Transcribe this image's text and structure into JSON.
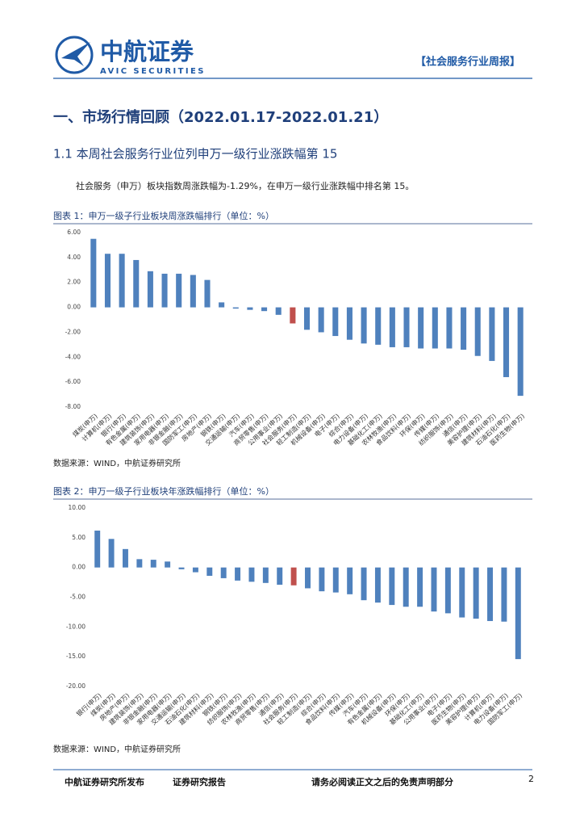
{
  "header": {
    "brand": "中航证券",
    "brand_en": "AVIC SECURITIES",
    "report_tag": "【社会服务行业周报】"
  },
  "section": {
    "heading": "一、市场行情回顾（2022.01.17-2022.01.21）",
    "subheading": "1.1 本周社会服务行业位列申万一级行业涨跌幅第 15",
    "paragraph": "社会服务（申万）板块指数周涨跌幅为-1.29%，在申万一级行业涨跌幅中排名第 15。"
  },
  "chart_data": [
    {
      "type": "bar",
      "title": "图表 1：申万一级子行业板块周涨跌幅排行（单位：%）",
      "source": "数据来源：WIND，中航证券研究所",
      "categories": [
        "煤炭(申万)",
        "计算机(申万)",
        "银行(申万)",
        "有色金属(申万)",
        "建筑装饰(申万)",
        "家用电器(申万)",
        "非银金融(申万)",
        "国防军工(申万)",
        "房地产(申万)",
        "钢铁(申万)",
        "交通运输(申万)",
        "汽车(申万)",
        "商贸零售(申万)",
        "公用事业(申万)",
        "社会服务(申万)",
        "轻工制造(申万)",
        "机械设备(申万)",
        "电子(申万)",
        "综合(申万)",
        "电力设备(申万)",
        "基础化工(申万)",
        "农林牧渔(申万)",
        "食品饮料(申万)",
        "环保(申万)",
        "传媒(申万)",
        "纺织服饰(申万)",
        "通信(申万)",
        "美容护理(申万)",
        "建筑材料(申万)",
        "石油石化(申万)",
        "医药生物(申万)"
      ],
      "values": [
        5.5,
        4.3,
        4.3,
        3.8,
        2.9,
        2.7,
        2.7,
        2.6,
        2.2,
        0.4,
        -0.1,
        -0.2,
        -0.3,
        -0.6,
        -1.29,
        -1.8,
        -2.0,
        -2.3,
        -2.6,
        -2.9,
        -3.0,
        -3.2,
        -3.2,
        -3.3,
        -3.3,
        -3.3,
        -3.4,
        -3.9,
        -4.3,
        -5.6,
        -7.1
      ],
      "colors": [
        "#4f81bd",
        "#4f81bd",
        "#4f81bd",
        "#4f81bd",
        "#4f81bd",
        "#4f81bd",
        "#4f81bd",
        "#4f81bd",
        "#4f81bd",
        "#4f81bd",
        "#4f81bd",
        "#4f81bd",
        "#4f81bd",
        "#4f81bd",
        "#c0504d",
        "#4f81bd",
        "#4f81bd",
        "#4f81bd",
        "#4f81bd",
        "#4f81bd",
        "#4f81bd",
        "#4f81bd",
        "#4f81bd",
        "#4f81bd",
        "#4f81bd",
        "#4f81bd",
        "#4f81bd",
        "#4f81bd",
        "#4f81bd",
        "#4f81bd",
        "#4f81bd"
      ],
      "ylim": [
        -8,
        6
      ],
      "yticks": [
        {
          "value": 6,
          "label": "6.00"
        },
        {
          "value": 4,
          "label": "4.00"
        },
        {
          "value": 2,
          "label": "2.00"
        },
        {
          "value": 0,
          "label": "0.00"
        },
        {
          "value": -2,
          "label": "-2.00"
        },
        {
          "value": -4,
          "label": "-4.00"
        },
        {
          "value": -6,
          "label": "-6.00"
        },
        {
          "value": -8,
          "label": "-8.00"
        }
      ],
      "grid": false
    },
    {
      "type": "bar",
      "title": "图表 2：申万一级子行业板块年涨跌幅排行（单位：%）",
      "source": "数据来源：WIND，中航证券研究所",
      "categories": [
        "银行(申万)",
        "煤炭(申万)",
        "房地产(申万)",
        "建筑装饰(申万)",
        "非银金融(申万)",
        "家用电器(申万)",
        "交通运输(申万)",
        "石油石化(申万)",
        "建筑材料(申万)",
        "钢铁(申万)",
        "纺织服饰(申万)",
        "农林牧渔(申万)",
        "商贸零售(申万)",
        "通信(申万)",
        "社会服务(申万)",
        "轻工制造(申万)",
        "综合(申万)",
        "食品饮料(申万)",
        "传媒(申万)",
        "汽车(申万)",
        "有色金属(申万)",
        "机械设备(申万)",
        "环保(申万)",
        "基础化工(申万)",
        "公用事业(申万)",
        "电子(申万)",
        "医药生物(申万)",
        "美容护理(申万)",
        "计算机(申万)",
        "电力设备(申万)",
        "国防军工(申万)"
      ],
      "values": [
        6.2,
        4.8,
        3.1,
        1.4,
        1.3,
        1.0,
        -0.3,
        -0.8,
        -1.4,
        -1.8,
        -2.2,
        -2.4,
        -2.6,
        -2.9,
        -3.0,
        -3.5,
        -4.0,
        -4.2,
        -4.5,
        -5.5,
        -5.9,
        -6.3,
        -6.6,
        -6.6,
        -7.4,
        -7.7,
        -8.4,
        -8.6,
        -9.0,
        -9.1,
        -15.4
      ],
      "colors": [
        "#4f81bd",
        "#4f81bd",
        "#4f81bd",
        "#4f81bd",
        "#4f81bd",
        "#4f81bd",
        "#4f81bd",
        "#4f81bd",
        "#4f81bd",
        "#4f81bd",
        "#4f81bd",
        "#4f81bd",
        "#4f81bd",
        "#4f81bd",
        "#c0504d",
        "#4f81bd",
        "#4f81bd",
        "#4f81bd",
        "#4f81bd",
        "#4f81bd",
        "#4f81bd",
        "#4f81bd",
        "#4f81bd",
        "#4f81bd",
        "#4f81bd",
        "#4f81bd",
        "#4f81bd",
        "#4f81bd",
        "#4f81bd",
        "#4f81bd",
        "#4f81bd"
      ],
      "ylim": [
        -20,
        10
      ],
      "yticks": [
        {
          "value": 10,
          "label": "10.00"
        },
        {
          "value": 5,
          "label": "5.00"
        },
        {
          "value": 0,
          "label": "0.00"
        },
        {
          "value": -5,
          "label": "-5.00"
        },
        {
          "value": -10,
          "label": "-10.00"
        },
        {
          "value": -15,
          "label": "-15.00"
        },
        {
          "value": -20,
          "label": "-20.00"
        }
      ],
      "grid": false
    }
  ],
  "footer": {
    "publisher": "中航证券研究所发布",
    "report_type": "证券研究报告",
    "disclaimer": "请务必阅读正文之后的免责声明部分",
    "page": "2"
  }
}
